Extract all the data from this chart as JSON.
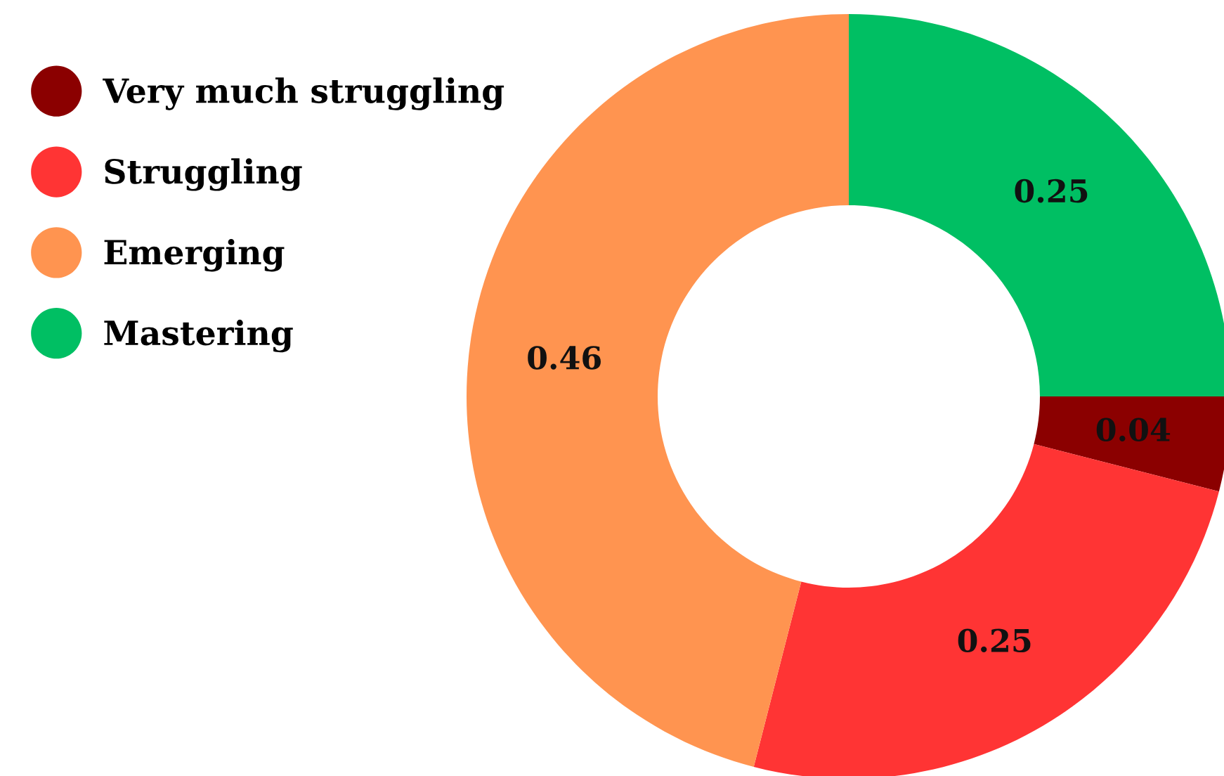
{
  "chart_data": {
    "type": "donut",
    "categories": [
      "Very much struggling",
      "Struggling",
      "Emerging",
      "Mastering"
    ],
    "values": [
      0.04,
      0.25,
      0.46,
      0.25
    ],
    "colors": [
      "#8b0000",
      "#ff3434",
      "#ff9450",
      "#00bf63"
    ],
    "data_labels": true,
    "legend": "left"
  }
}
